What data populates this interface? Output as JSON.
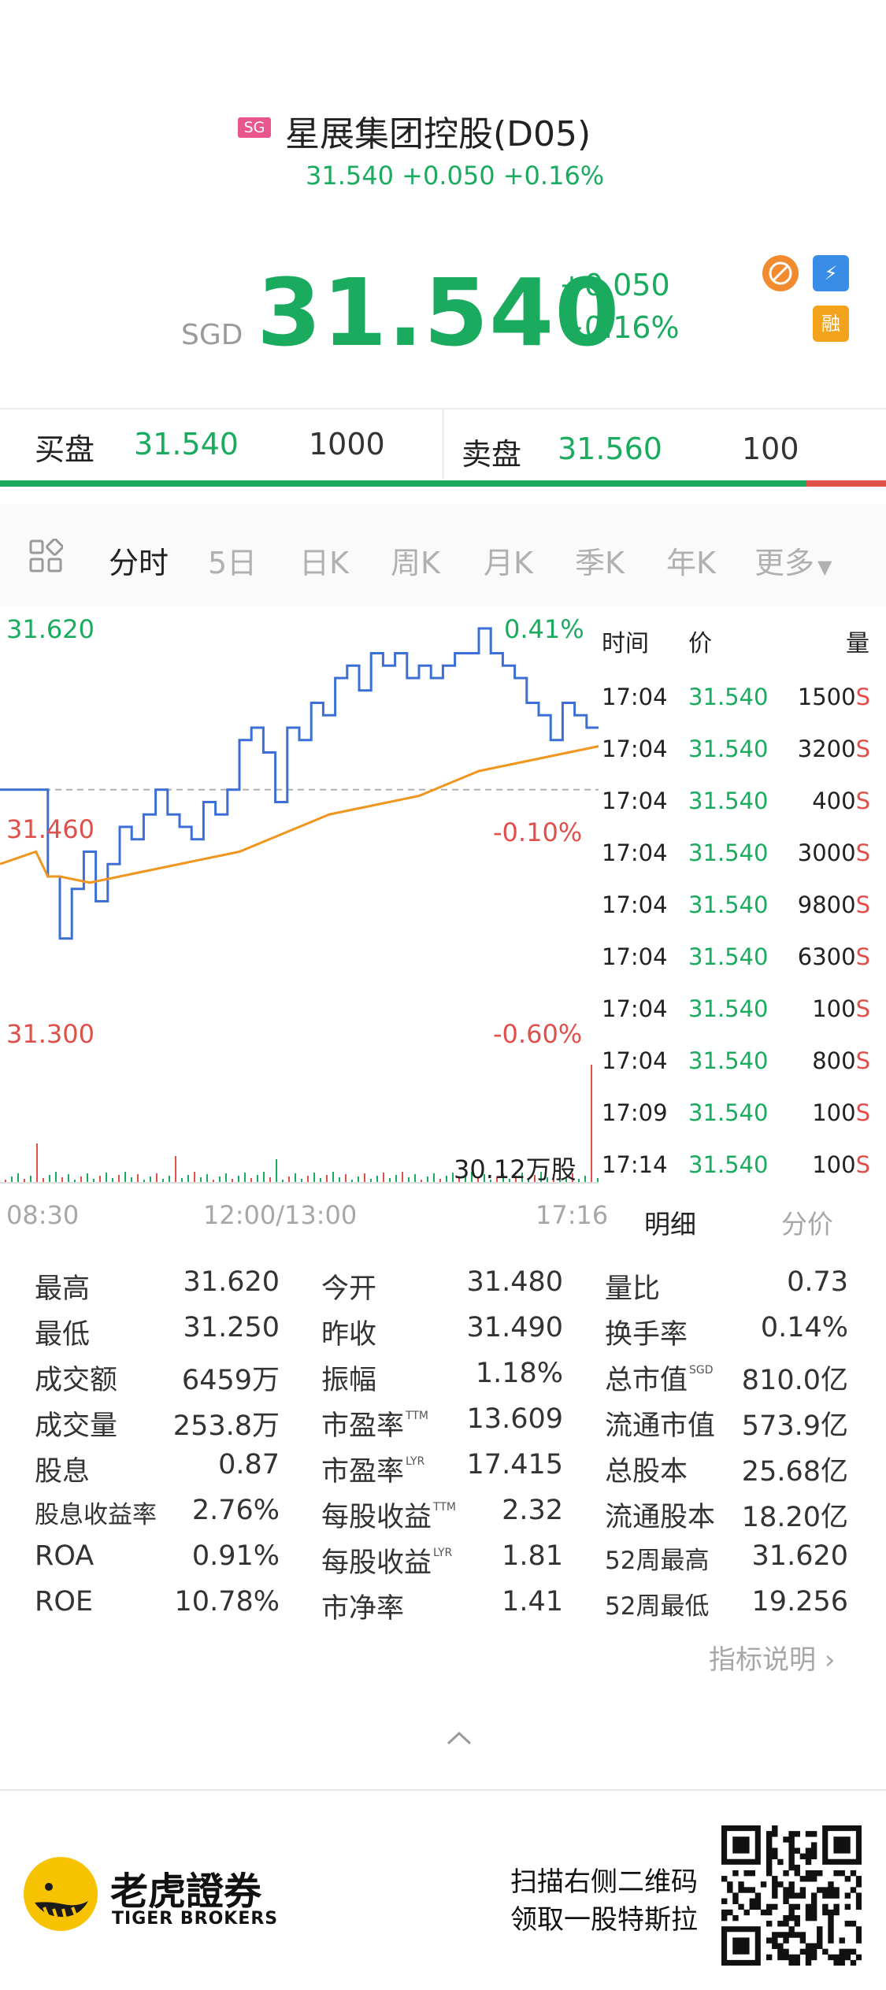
{
  "header": {
    "market_badge": "SG",
    "title": "星展集团控股(D05)",
    "sub_price": "31.540",
    "sub_change": "+0.050",
    "sub_pct": "+0.16%",
    "currency": "SGD",
    "price": "31.540",
    "change": "+0.050",
    "change_pct": "+0.16%",
    "icons": [
      "hot-icon",
      "flash-icon",
      "margin-icon"
    ],
    "margin_label": "融",
    "flash_label": "⚡"
  },
  "bid_ask": {
    "bid_label": "买盘",
    "bid_price": "31.540",
    "bid_qty": "1000",
    "ask_label": "卖盘",
    "ask_price": "31.560",
    "ask_qty": "100",
    "bid_ratio": 0.909
  },
  "tabs": {
    "items": [
      "分时",
      "5日",
      "日K",
      "周K",
      "月K",
      "季K",
      "年K"
    ],
    "more": "更多",
    "active": "分时"
  },
  "chart_data": {
    "type": "line",
    "y_labels": {
      "high": "31.620",
      "mid": "31.460",
      "low": "31.300"
    },
    "pct_labels": {
      "high": "0.41%",
      "mid": "-0.10%",
      "low": "-0.60%"
    },
    "x_labels": [
      "08:30",
      "12:00/13:00",
      "17:16"
    ],
    "volume_label": "30.12万股",
    "prev_close": 31.49,
    "ylim": [
      31.3,
      31.62
    ],
    "series": [
      {
        "x": [
          0,
          4,
          8,
          10,
          12,
          14,
          16,
          18,
          20,
          22,
          24,
          26,
          28,
          30,
          32,
          34,
          36,
          38,
          40,
          42,
          44,
          46,
          48,
          50,
          52,
          54,
          56,
          58,
          60,
          62,
          64,
          66,
          68,
          70,
          72,
          74,
          76,
          78,
          80,
          82,
          84,
          86,
          88,
          90,
          92,
          94,
          96,
          98,
          100
        ],
        "values": [
          31.49,
          31.49,
          31.42,
          31.37,
          31.41,
          31.44,
          31.4,
          31.43,
          31.46,
          31.45,
          31.47,
          31.49,
          31.47,
          31.46,
          31.45,
          31.48,
          31.47,
          31.49,
          31.53,
          31.54,
          31.52,
          31.48,
          31.54,
          31.53,
          31.56,
          31.55,
          31.58,
          31.59,
          31.57,
          31.6,
          31.59,
          31.6,
          31.58,
          31.59,
          31.58,
          31.59,
          31.6,
          31.6,
          31.62,
          31.6,
          31.59,
          31.58,
          31.56,
          31.55,
          31.53,
          31.56,
          31.55,
          31.54,
          31.54
        ],
        "color": "#3b6fd6"
      },
      {
        "x": [
          0,
          6,
          8,
          10,
          15,
          20,
          25,
          30,
          35,
          40,
          45,
          50,
          55,
          60,
          65,
          70,
          75,
          80,
          85,
          90,
          95,
          100
        ],
        "values": [
          31.43,
          31.44,
          31.42,
          31.42,
          31.415,
          31.42,
          31.425,
          31.43,
          31.435,
          31.44,
          31.45,
          31.46,
          31.47,
          31.475,
          31.48,
          31.485,
          31.495,
          31.505,
          31.51,
          31.515,
          31.52,
          31.525
        ],
        "color": "#f0951e"
      }
    ]
  },
  "trades": {
    "headers": [
      "时间",
      "价",
      "量"
    ],
    "rows": [
      {
        "time": "17:04",
        "price": "31.540",
        "qty": "1500",
        "side": "S"
      },
      {
        "time": "17:04",
        "price": "31.540",
        "qty": "3200",
        "side": "S"
      },
      {
        "time": "17:04",
        "price": "31.540",
        "qty": "400",
        "side": "S"
      },
      {
        "time": "17:04",
        "price": "31.540",
        "qty": "3000",
        "side": "S"
      },
      {
        "time": "17:04",
        "price": "31.540",
        "qty": "9800",
        "side": "S"
      },
      {
        "time": "17:04",
        "price": "31.540",
        "qty": "6300",
        "side": "S"
      },
      {
        "time": "17:04",
        "price": "31.540",
        "qty": "100",
        "side": "S"
      },
      {
        "time": "17:04",
        "price": "31.540",
        "qty": "800",
        "side": "S"
      },
      {
        "time": "17:09",
        "price": "31.540",
        "qty": "100",
        "side": "S"
      },
      {
        "time": "17:14",
        "price": "31.540",
        "qty": "100",
        "side": "S"
      }
    ],
    "tab_detail": "明细",
    "tab_price": "分价"
  },
  "stats": {
    "col1": [
      {
        "label": "最高",
        "value": "31.620"
      },
      {
        "label": "最低",
        "value": "31.250"
      },
      {
        "label": "成交额",
        "value": "6459万"
      },
      {
        "label": "成交量",
        "value": "253.8万"
      },
      {
        "label": "股息",
        "value": "0.87"
      },
      {
        "label": "股息收益率",
        "value": "2.76%"
      },
      {
        "label": "ROA",
        "value": "0.91%"
      },
      {
        "label": "ROE",
        "value": "10.78%"
      }
    ],
    "col2": [
      {
        "label": "今开",
        "value": "31.480",
        "sup": ""
      },
      {
        "label": "昨收",
        "value": "31.490",
        "sup": ""
      },
      {
        "label": "振幅",
        "value": "1.18%",
        "sup": ""
      },
      {
        "label": "市盈率",
        "value": "13.609",
        "sup": "TTM"
      },
      {
        "label": "市盈率",
        "value": "17.415",
        "sup": "LYR"
      },
      {
        "label": "每股收益",
        "value": "2.32",
        "sup": "TTM"
      },
      {
        "label": "每股收益",
        "value": "1.81",
        "sup": "LYR"
      },
      {
        "label": "市净率",
        "value": "1.41",
        "sup": ""
      }
    ],
    "col3": [
      {
        "label": "量比",
        "value": "0.73",
        "sup": ""
      },
      {
        "label": "换手率",
        "value": "0.14%",
        "sup": ""
      },
      {
        "label": "总市值",
        "value": "810.0亿",
        "sup": "SGD"
      },
      {
        "label": "流通市值",
        "value": "573.9亿",
        "sup": ""
      },
      {
        "label": "总股本",
        "value": "25.68亿",
        "sup": ""
      },
      {
        "label": "流通股本",
        "value": "18.20亿",
        "sup": ""
      },
      {
        "label": "52周最高",
        "value": "31.620",
        "sup": ""
      },
      {
        "label": "52周最低",
        "value": "19.256",
        "sup": ""
      }
    ],
    "indicator_link": "指标说明"
  },
  "footer": {
    "brand_cn": "老虎證券",
    "brand_en": "TIGER BROKERS",
    "promo_line1": "扫描右侧二维码",
    "promo_line2": "领取一股特斯拉"
  }
}
